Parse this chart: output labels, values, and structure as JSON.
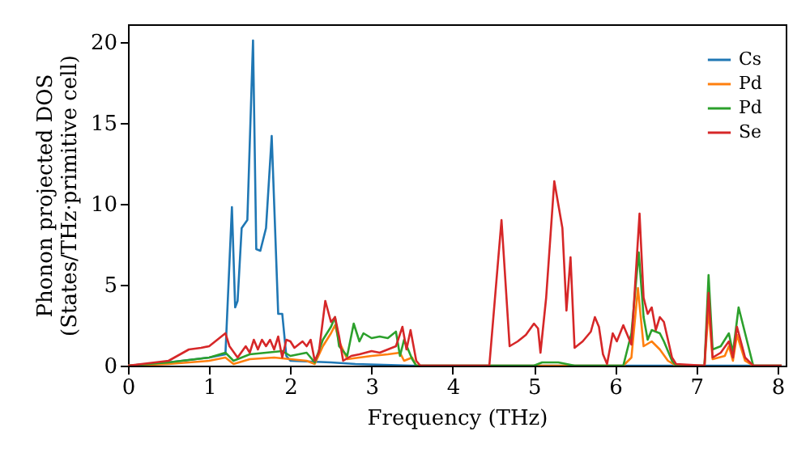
{
  "chart_data": {
    "type": "line",
    "xlabel": "Frequency (THz)",
    "ylabel": "Phonon projected DOS\n(States/THz·primitive cell)",
    "xlim": [
      0,
      8.1
    ],
    "ylim": [
      0,
      21.1
    ],
    "xticks": [
      0,
      1,
      2,
      3,
      4,
      5,
      6,
      7,
      8
    ],
    "yticks": [
      0,
      5,
      10,
      15,
      20
    ],
    "grid": false,
    "legend": "top right",
    "marker": "none",
    "line_style": "solid",
    "series": [
      {
        "name": "Cs",
        "color": "#1f77b4",
        "x": [
          0,
          0.5,
          1.0,
          1.2,
          1.28,
          1.32,
          1.35,
          1.4,
          1.47,
          1.54,
          1.58,
          1.63,
          1.7,
          1.77,
          1.85,
          1.9,
          1.95,
          2.0,
          2.5,
          2.8,
          3.5,
          8.05
        ],
        "values": [
          0,
          0.2,
          0.5,
          0.7,
          9.8,
          3.6,
          4,
          8.5,
          9,
          20.1,
          7.2,
          7.1,
          8.5,
          14.2,
          3.2,
          3.2,
          0.6,
          0.3,
          0.2,
          0.1,
          0,
          0
        ]
      },
      {
        "name": "Pd",
        "color": "#ff7f0e",
        "x": [
          0,
          0.5,
          1.0,
          1.2,
          1.3,
          1.5,
          1.8,
          2.0,
          2.2,
          2.3,
          2.4,
          2.5,
          2.55,
          2.6,
          2.7,
          3.0,
          3.2,
          3.35,
          3.4,
          3.5,
          3.55,
          6.1,
          6.2,
          6.28,
          6.35,
          6.45,
          6.55,
          6.65,
          6.75,
          7.1,
          7.15,
          7.2,
          7.35,
          7.4,
          7.45,
          7.5,
          7.6,
          7.7,
          8.05
        ],
        "values": [
          0,
          0.1,
          0.3,
          0.5,
          0.1,
          0.4,
          0.5,
          0.4,
          0.3,
          0.1,
          1.2,
          2.0,
          2.5,
          1.5,
          0.4,
          0.6,
          0.7,
          0.8,
          0.3,
          0.5,
          0,
          0,
          0.5,
          4.8,
          1.2,
          1.5,
          1.0,
          0.3,
          0,
          0,
          3.5,
          0.4,
          0.6,
          1.2,
          0.3,
          1.9,
          0.3,
          0,
          0
        ]
      },
      {
        "name": "Pd",
        "color": "#2ca02c",
        "x": [
          0,
          0.5,
          1.0,
          1.2,
          1.3,
          1.5,
          1.7,
          1.9,
          2.0,
          2.2,
          2.3,
          2.4,
          2.5,
          2.55,
          2.6,
          2.7,
          2.78,
          2.85,
          2.9,
          3.0,
          3.1,
          3.2,
          3.3,
          3.35,
          3.4,
          3.5,
          3.55,
          5.0,
          5.1,
          5.3,
          5.5,
          6.1,
          6.2,
          6.29,
          6.35,
          6.4,
          6.45,
          6.55,
          6.6,
          6.7,
          6.75,
          7.1,
          7.15,
          7.2,
          7.3,
          7.4,
          7.45,
          7.52,
          7.6,
          7.7,
          8.05
        ],
        "values": [
          0,
          0.2,
          0.5,
          0.8,
          0.3,
          0.7,
          0.8,
          0.9,
          0.6,
          0.8,
          0.2,
          1.6,
          2.4,
          3.0,
          1.2,
          0.6,
          2.6,
          1.5,
          2.0,
          1.7,
          1.8,
          1.7,
          2.1,
          0.6,
          1.6,
          0.4,
          0,
          0,
          0.2,
          0.2,
          0,
          0,
          2.0,
          7.0,
          3.0,
          1.6,
          2.2,
          2.0,
          1.5,
          0.3,
          0,
          0,
          5.6,
          1.0,
          1.2,
          2.0,
          0.8,
          3.6,
          2.0,
          0,
          0
        ]
      },
      {
        "name": "Se",
        "color": "#d62728",
        "x": [
          0,
          0.5,
          0.75,
          0.9,
          1.0,
          1.1,
          1.2,
          1.25,
          1.35,
          1.45,
          1.5,
          1.55,
          1.6,
          1.65,
          1.7,
          1.75,
          1.8,
          1.85,
          1.9,
          1.95,
          2.0,
          2.05,
          2.15,
          2.2,
          2.25,
          2.3,
          2.35,
          2.43,
          2.5,
          2.55,
          2.6,
          2.65,
          2.75,
          2.85,
          3.0,
          3.1,
          3.2,
          3.3,
          3.38,
          3.43,
          3.48,
          3.55,
          3.6,
          4.45,
          4.6,
          4.7,
          4.8,
          4.9,
          5.0,
          5.05,
          5.08,
          5.15,
          5.25,
          5.35,
          5.4,
          5.45,
          5.5,
          5.6,
          5.7,
          5.75,
          5.8,
          5.85,
          5.9,
          5.97,
          6.02,
          6.1,
          6.15,
          6.2,
          6.3,
          6.35,
          6.4,
          6.45,
          6.5,
          6.55,
          6.6,
          6.7,
          6.75,
          7.1,
          7.15,
          7.2,
          7.3,
          7.4,
          7.45,
          7.5,
          7.6,
          7.7,
          8.05
        ],
        "values": [
          0,
          0.3,
          1.0,
          1.1,
          1.2,
          1.6,
          2.0,
          1.2,
          0.5,
          1.2,
          0.8,
          1.6,
          1.0,
          1.6,
          1.2,
          1.6,
          1.0,
          1.8,
          0.5,
          1.6,
          1.5,
          1.1,
          1.5,
          1.2,
          1.6,
          0.3,
          0.8,
          4.0,
          2.7,
          3.0,
          1.8,
          0.3,
          0.6,
          0.7,
          0.9,
          0.8,
          1.0,
          1.2,
          2.4,
          1.0,
          2.2,
          0.3,
          0,
          0,
          9.0,
          1.2,
          1.5,
          1.9,
          2.6,
          2.3,
          0.8,
          4.2,
          11.4,
          8.5,
          3.4,
          6.7,
          1.1,
          1.5,
          2.1,
          3.0,
          2.4,
          0.7,
          0.1,
          2.0,
          1.5,
          2.5,
          1.9,
          1.3,
          9.4,
          4.2,
          3.2,
          3.6,
          2.2,
          3.0,
          2.7,
          0.5,
          0.1,
          0,
          4.5,
          0.5,
          0.8,
          1.5,
          0.5,
          2.4,
          0.5,
          0,
          0
        ]
      }
    ]
  }
}
